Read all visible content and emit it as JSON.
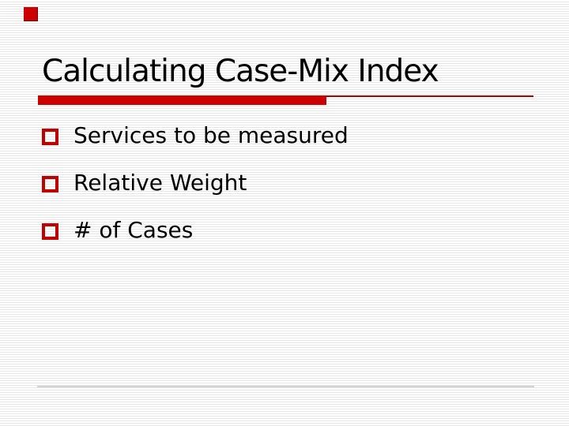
{
  "slide": {
    "title": "Calculating Case-Mix Index",
    "bullets": [
      {
        "label": "Services to be measured"
      },
      {
        "label": "Relative Weight"
      },
      {
        "label": "# of Cases"
      }
    ],
    "colors": {
      "accent_red_bar": "#cc0000",
      "accent_red_thin_rule": "#aa0000",
      "bullet_square_red": "#c00000",
      "pinstripe_gray": "#e6e6e6",
      "footer_line_gray": "#d9d0d0",
      "text_black": "#000000",
      "background_white": "#ffffff"
    },
    "decorations": {
      "corner_square_icon": "red-square-icon",
      "bullet_marker_icon": "hollow-red-square-icon",
      "background_pattern": "horizontal-pinstripes"
    }
  }
}
